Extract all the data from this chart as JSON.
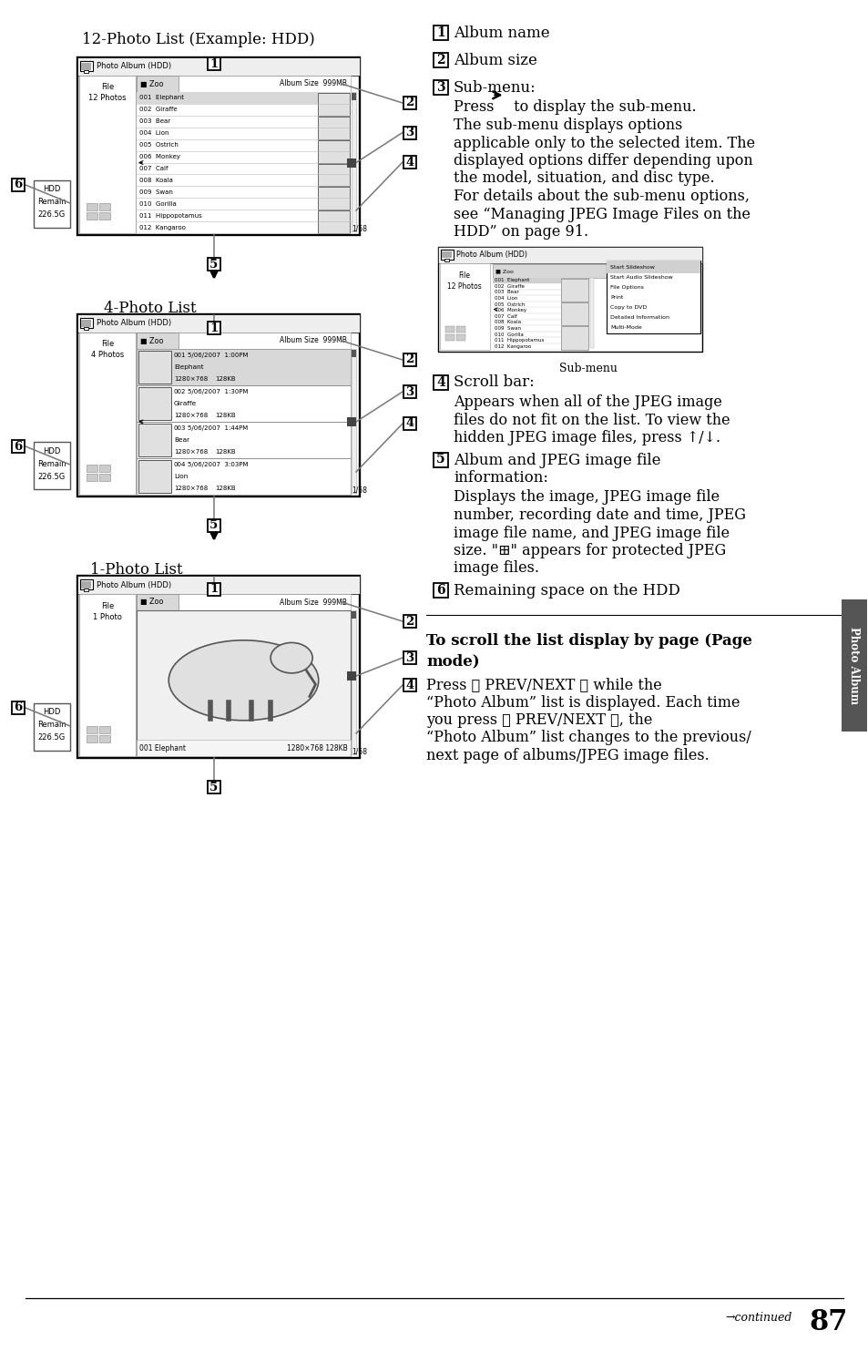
{
  "page_bg": "#ffffff",
  "page_number": "87",
  "title_12photo": "12-Photo List (Example: HDD)",
  "title_4photo": "4-Photo List",
  "title_1photo": "1-Photo List",
  "animals_12": [
    "001  Elephant",
    "002  Giraffe",
    "003  Bear",
    "004  Lion",
    "005  Ostrich",
    "006  Monkey",
    "007  Calf",
    "008  Koala",
    "009  Swan",
    "010  Gorilla",
    "011  Hippopotamus",
    "012  Kangaroo"
  ],
  "animals_4": [
    [
      "001",
      "Elephant",
      "5/06/2007  1:00PM",
      "1280×768",
      "128KB"
    ],
    [
      "002",
      "Giraffe",
      "5/06/2007  1:30PM",
      "1280×768",
      "128KB"
    ],
    [
      "003",
      "Bear",
      "5/06/2007  1:44PM",
      "1280×768",
      "128KB"
    ],
    [
      "004",
      "Lion",
      "5/06/2007  3:03PM",
      "1280×768",
      "128KB"
    ]
  ],
  "album_hdr": "Photo Album (HDD)",
  "zoo_text": "■ Zoo",
  "album_size": "Album Size  999MB",
  "file_12": "File\n12 Photos",
  "file_4": "File\n4 Photos",
  "file_1": "File\n1 Photo",
  "hdd_lines": [
    "HDD",
    "Remain",
    "226.5G"
  ],
  "page_ind": "1/58",
  "photo1_left": "001 Elephant",
  "photo1_right": "1280×768 128KB",
  "r1_label": "Album name",
  "r2_label": "Album size",
  "r3_label": "Sub-menu:",
  "r3_body": [
    "Press → to display the sub-menu.",
    "The sub-menu displays options",
    "applicable only to the selected item. The",
    "displayed options differ depending upon",
    "the model, situation, and disc type.",
    "For details about the sub-menu options,",
    "see “Managing JPEG Image Files on the",
    "HDD” on page 91."
  ],
  "submenu_items": [
    "Start Slideshow",
    "Start Audio Slideshow",
    "File Options",
    "Print",
    "Copy to DVD",
    "Detailed Information",
    "Multi-Mode"
  ],
  "r4_label": "Scroll bar:",
  "r4_body": [
    "Appears when all of the JPEG image",
    "files do not fit on the list. To view the",
    "hidden JPEG image files, press ↑/↓."
  ],
  "r5_label": "Album and JPEG image file",
  "r5_label2": "information:",
  "r5_body": [
    "Displays the image, JPEG image file",
    "number, recording date and time, JPEG",
    "image file name, and JPEG image file",
    "size. \"⊞\" appears for protected JPEG",
    "image files."
  ],
  "r6_label": "Remaining space on the HDD",
  "scroll_title1": "To scroll the list display by page (Page",
  "scroll_title2": "mode)",
  "scroll_body": [
    "Press ⏮ PREV/NEXT ⏭ while the",
    "“Photo Album” list is displayed. Each time",
    "you press ⏮ PREV/NEXT ⏭, the",
    "“Photo Album” list changes to the previous/",
    "next page of albums/JPEG image files."
  ],
  "tab_text": "Photo Album",
  "continued": "→continued",
  "pagenum": "87"
}
